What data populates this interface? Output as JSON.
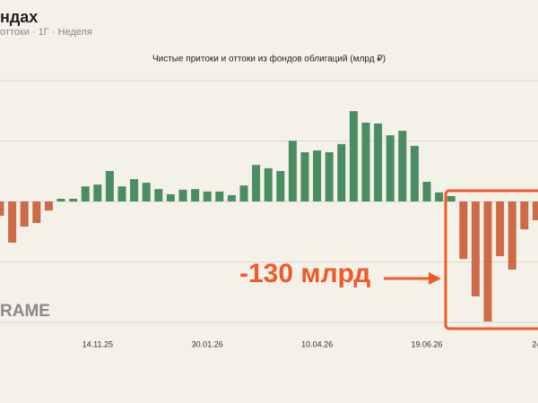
{
  "header": {
    "title": "ндах",
    "subtitle": "оттоки · 1Г · Неделя"
  },
  "watermark": "RAME",
  "annotation": {
    "text": "-130 млрд"
  },
  "chart_data": {
    "type": "bar",
    "title": "Чистые притоки и оттоки из фондов облигаций (млрд ₽)",
    "categories": [
      null,
      null,
      null,
      null,
      null,
      null,
      null,
      null,
      "14.11.25",
      null,
      null,
      null,
      null,
      null,
      null,
      null,
      null,
      "30.01.26",
      null,
      null,
      null,
      null,
      null,
      null,
      null,
      null,
      "10.04.26",
      null,
      null,
      null,
      null,
      null,
      null,
      null,
      null,
      "19.06.26",
      null,
      null,
      null,
      null,
      null,
      null,
      null,
      null,
      "24"
    ],
    "values": [
      -4.7,
      -13.6,
      -8.3,
      -7.1,
      -3.0,
      0.9,
      0.9,
      5.0,
      5.6,
      10.1,
      5.0,
      7.4,
      6.2,
      4.1,
      2.4,
      3.9,
      4.1,
      3.3,
      3.3,
      2.1,
      5.3,
      12.1,
      11.0,
      10.1,
      20.1,
      16.3,
      16.9,
      16.3,
      19.0,
      29.9,
      26.1,
      25.8,
      21.9,
      23.4,
      18.4,
      6.5,
      3.0,
      1.8,
      -19.0,
      -31.4,
      -39.7,
      -18.1,
      -22.5,
      -9.2,
      -6.2
    ],
    "positive_color": "#4b8d62",
    "negative_color": "#cd6a48",
    "ylim": [
      -40,
      40
    ],
    "yticks": [
      -40,
      -20,
      0,
      20,
      40
    ],
    "grid": true
  }
}
